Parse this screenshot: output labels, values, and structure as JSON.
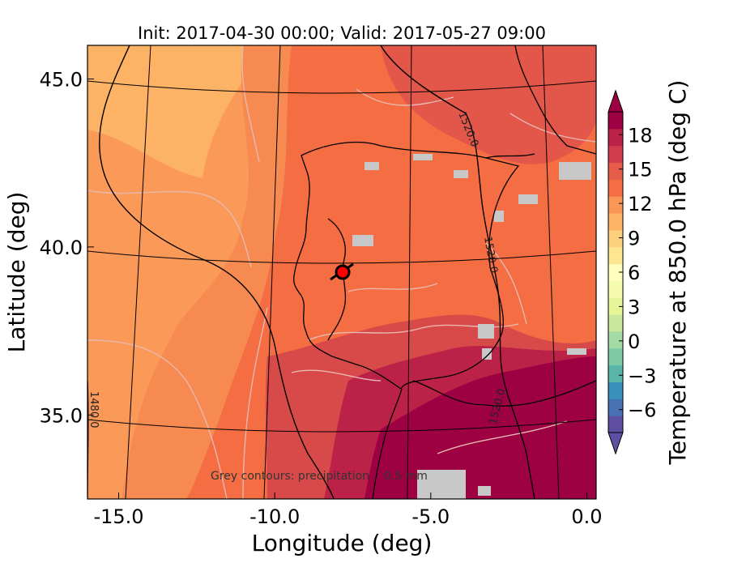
{
  "chart_data": {
    "type": "heatmap",
    "title": "Init: 2017-04-30 00:00; Valid: 2017-05-27 09:00",
    "xlabel": "Longitude (deg)",
    "ylabel": "Latitude (deg)",
    "xlim": [
      -16.0,
      0.3
    ],
    "ylim": [
      32.5,
      46.0
    ],
    "x_ticks": [
      "-15.0",
      "-10.0",
      "-5.0",
      "0.0"
    ],
    "x_tick_values": [
      -15,
      -10,
      -5,
      0
    ],
    "y_ticks": [
      "35.0",
      "40.0",
      "45.0"
    ],
    "y_tick_values": [
      35,
      40,
      45
    ],
    "colorbar": {
      "label": "Temperature at 850.0 hPa (deg C)",
      "ticks": [
        "−6",
        "−3",
        "0",
        "3",
        "6",
        "9",
        "12",
        "15",
        "18"
      ],
      "tick_values": [
        -6,
        -3,
        0,
        3,
        6,
        9,
        12,
        15,
        18
      ],
      "range": [
        -8,
        20
      ],
      "extend": "both",
      "colors": [
        "#5e4fa2",
        "#4771b2",
        "#3990b9",
        "#59b4aa",
        "#7fc9a5",
        "#a4dba4",
        "#c8e89e",
        "#e6f598",
        "#f5fbad",
        "#fffebe",
        "#fee591",
        "#fdd07f",
        "#fdb366",
        "#fa9656",
        "#f46d43",
        "#e55c48",
        "#d33c4e",
        "#bc2148",
        "#9e0142"
      ]
    },
    "geopotential_contour_labels": [
      "1520.0",
      "1520.0",
      "1520.0",
      "1480.0"
    ],
    "annotation": "Grey contours: precipitation    0.5 mm",
    "marker": {
      "lon": -7.6,
      "lat": 39.3,
      "color": "#ff0000"
    },
    "field_description": {
      "open_ocean_nw": "#fdb366",
      "ocean_west": "#f8824f",
      "iberia_interior": "#f46d43",
      "south_africa": "#9e0142"
    }
  }
}
